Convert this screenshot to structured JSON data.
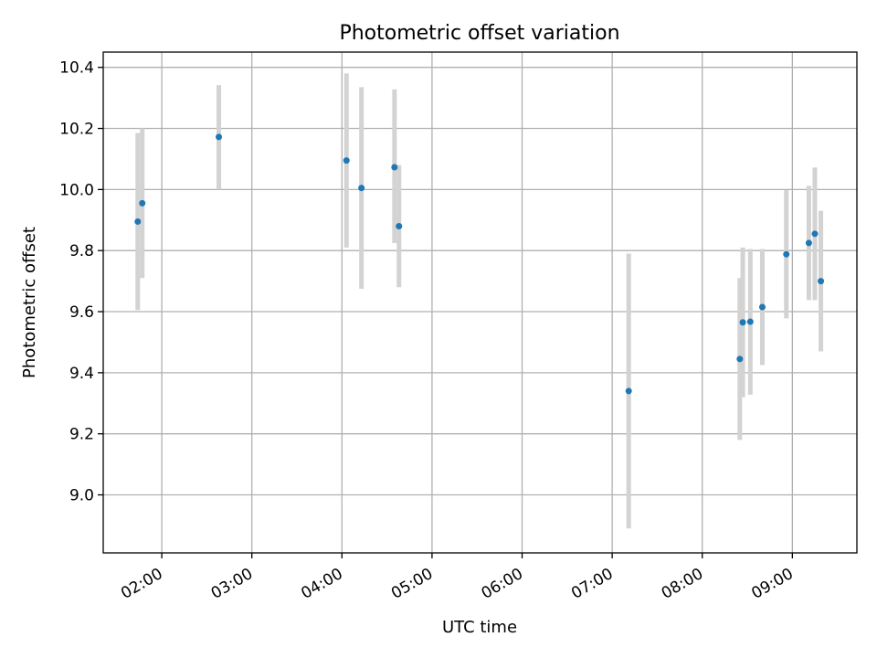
{
  "chart_data": {
    "type": "scatter",
    "title": "Photometric offset variation",
    "xlabel": "UTC time",
    "ylabel": "Photometric offset",
    "xlim": [
      "01:21",
      "09:43"
    ],
    "ylim": [
      8.81,
      10.45
    ],
    "x_ticks": [
      "02:00",
      "03:00",
      "04:00",
      "05:00",
      "06:00",
      "07:00",
      "08:00",
      "09:00"
    ],
    "y_ticks": [
      "9.0",
      "9.2",
      "9.4",
      "9.6",
      "9.8",
      "10.0",
      "10.2",
      "10.4"
    ],
    "grid": true,
    "legend": "none",
    "marker_color": "#1f77b4",
    "errorbar_color": "#d3d3d3",
    "points": [
      {
        "x": "01:44",
        "y": 9.895,
        "ylow": 9.605,
        "yhigh": 10.185
      },
      {
        "x": "01:47",
        "y": 9.955,
        "ylow": 9.71,
        "yhigh": 10.2
      },
      {
        "x": "02:38",
        "y": 10.172,
        "ylow": 10.0,
        "yhigh": 10.342
      },
      {
        "x": "04:03",
        "y": 10.095,
        "ylow": 9.81,
        "yhigh": 10.38
      },
      {
        "x": "04:13",
        "y": 10.005,
        "ylow": 9.675,
        "yhigh": 10.335
      },
      {
        "x": "04:35",
        "y": 10.073,
        "ylow": 9.825,
        "yhigh": 10.328
      },
      {
        "x": "04:38",
        "y": 9.88,
        "ylow": 9.68,
        "yhigh": 10.08
      },
      {
        "x": "07:11",
        "y": 9.34,
        "ylow": 8.89,
        "yhigh": 9.79
      },
      {
        "x": "08:25",
        "y": 9.445,
        "ylow": 9.18,
        "yhigh": 9.71
      },
      {
        "x": "08:27",
        "y": 9.565,
        "ylow": 9.32,
        "yhigh": 9.81
      },
      {
        "x": "08:32",
        "y": 9.567,
        "ylow": 9.328,
        "yhigh": 9.805
      },
      {
        "x": "08:40",
        "y": 9.615,
        "ylow": 9.425,
        "yhigh": 9.805
      },
      {
        "x": "08:56",
        "y": 9.788,
        "ylow": 9.578,
        "yhigh": 9.998
      },
      {
        "x": "09:11",
        "y": 9.825,
        "ylow": 9.638,
        "yhigh": 10.012
      },
      {
        "x": "09:15",
        "y": 9.855,
        "ylow": 9.638,
        "yhigh": 10.072
      },
      {
        "x": "09:19",
        "y": 9.7,
        "ylow": 9.47,
        "yhigh": 9.93
      }
    ]
  }
}
